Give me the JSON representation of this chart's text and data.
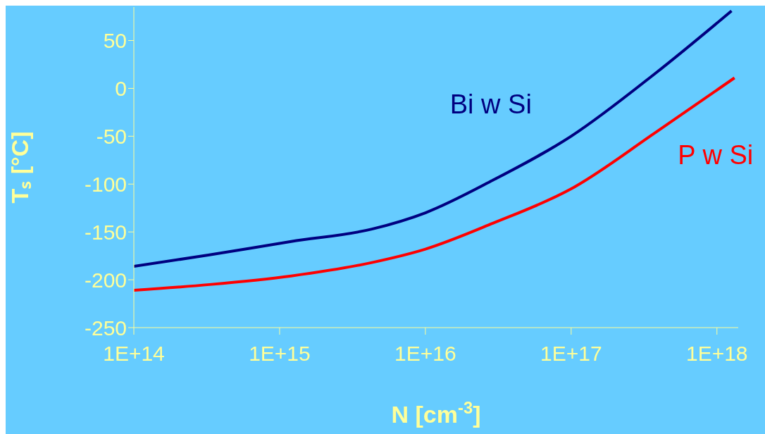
{
  "chart_data": {
    "type": "line",
    "xlabel": "N [cm$^{-3}$]",
    "ylabel": "Tₛ [°C]",
    "log": "x",
    "marker": "none",
    "line_style": "solid",
    "xlim": [
      100000000000000.0,
      1.4e+18
    ],
    "ylim": [
      -250,
      85
    ],
    "xticks": [
      {
        "value": 100000000000000.0,
        "label": "1E+14"
      },
      {
        "value": 1000000000000000.0,
        "label": "1E+15"
      },
      {
        "value": 1e+16,
        "label": "1E+16"
      },
      {
        "value": 1e+17,
        "label": "1E+17"
      },
      {
        "value": 1e+18,
        "label": "1E+18"
      }
    ],
    "yticks": [
      -250,
      -200,
      -150,
      -100,
      -50,
      0,
      50
    ],
    "series": [
      {
        "name": "Bi w Si",
        "color": "#000080",
        "x": [
          100000000000000.0,
          330000000000000.0,
          1200000000000000.0,
          4300000000000000.0,
          1e+16,
          2.9e+16,
          1e+17,
          3.8e+17,
          1.26e+18
        ],
        "values": [
          -186,
          -174,
          -160,
          -147,
          -130,
          -96,
          -50,
          16,
          81
        ]
      },
      {
        "name": "P w Si",
        "color": "#ff0000",
        "x": [
          100000000000000.0,
          330000000000000.0,
          1200000000000000.0,
          4300000000000000.0,
          1e+16,
          2.9e+16,
          1e+17,
          3.8e+17,
          1.32e+18
        ],
        "values": [
          -211,
          -205,
          -196,
          -182,
          -168,
          -141,
          -105,
          -46,
          11
        ]
      }
    ]
  }
}
